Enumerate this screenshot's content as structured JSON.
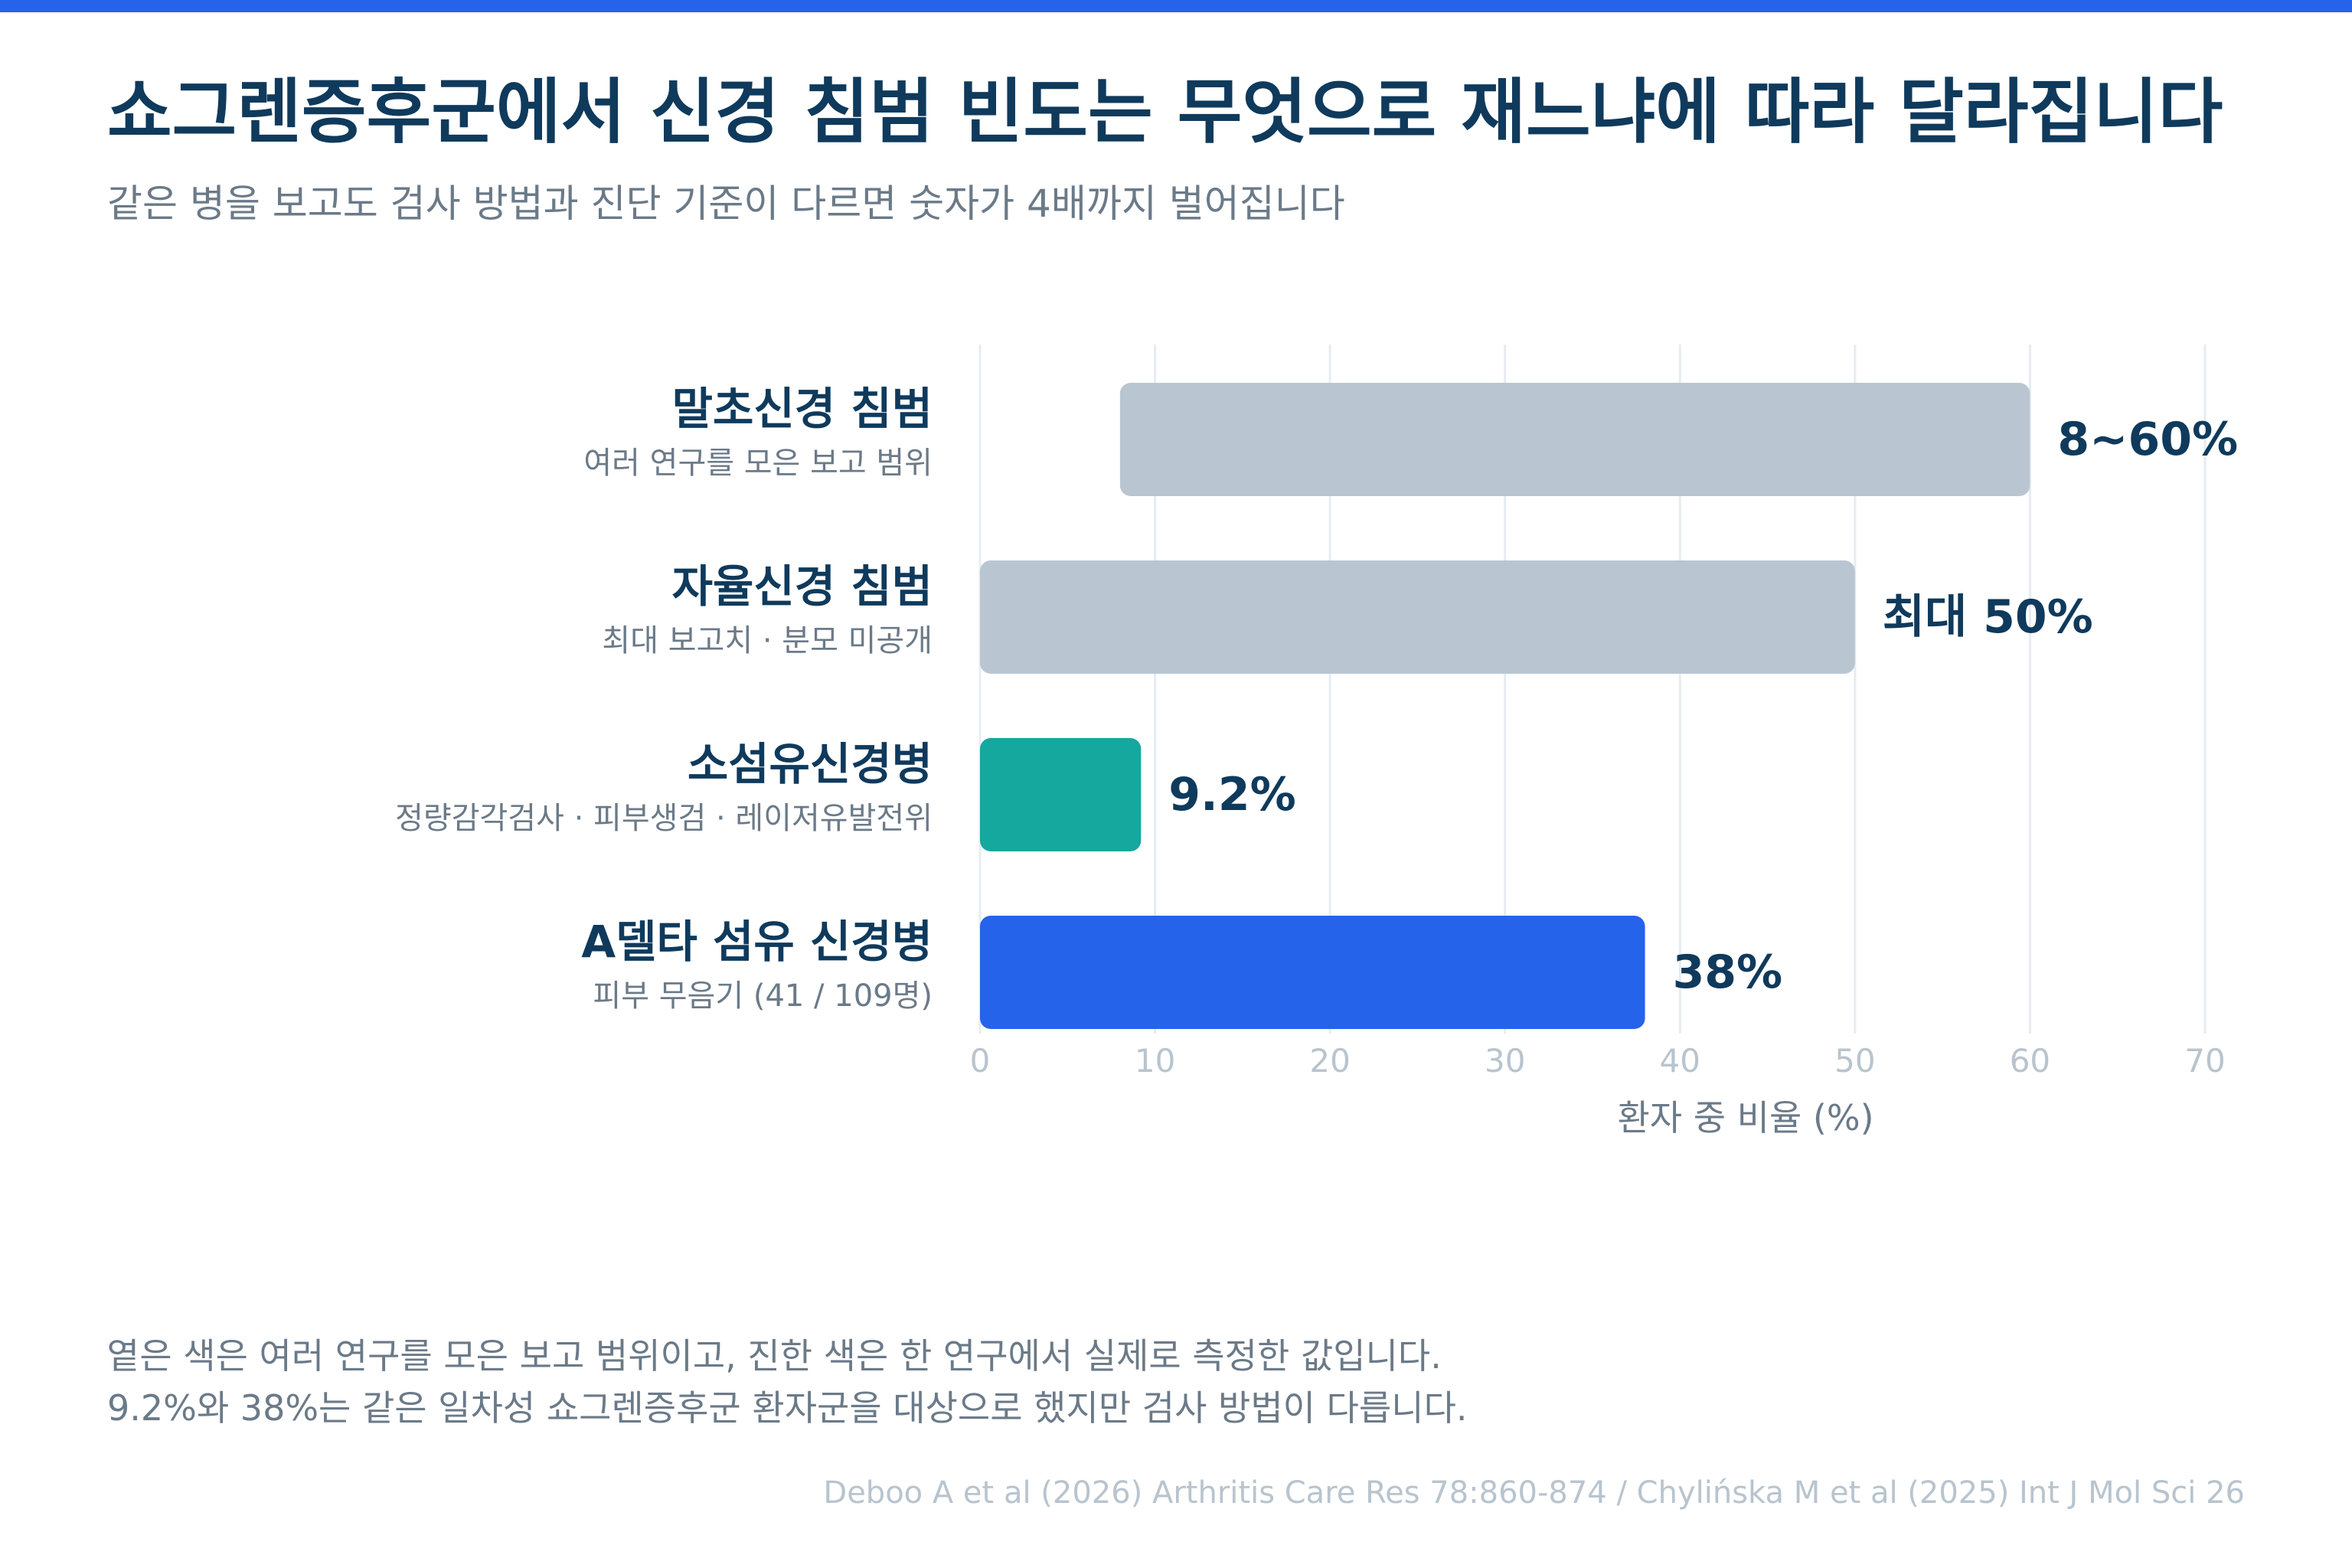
{
  "colors": {
    "accent_bar": "#2563eb",
    "title": "#0f3a5c",
    "subtitle": "#6b7a88",
    "range_bar": "#b9c6d1",
    "teal_bar": "#14a89e",
    "blue_bar": "#2563eb",
    "grid": "#e6ecf1",
    "tick": "#b8c4ce",
    "source": "#b8c4ce"
  },
  "header": {
    "title": "쇼그렌증후군에서 신경 침범 빈도는 무엇으로 재느냐에 따라 달라집니다",
    "subtitle": "같은 병을 보고도 검사 방법과 진단 기준이 다르면 숫자가 4배까지 벌어집니다"
  },
  "chart_data": {
    "type": "bar",
    "orientation": "horizontal",
    "title": "",
    "xlabel": "환자 중 비율 (%)",
    "ylabel": "",
    "xlim": [
      0,
      70
    ],
    "xticks": [
      0,
      10,
      20,
      30,
      40,
      50,
      60,
      70
    ],
    "grid": true,
    "categories": [
      "말초신경 침범",
      "자율신경 침범",
      "소섬유신경병",
      "A델타 섬유 신경병"
    ],
    "sublabels": [
      "여러 연구를 모은 보고 범위",
      "최대 보고치 · 분모 미공개",
      "정량감각검사 · 피부생검 · 레이저유발전위",
      "피부 무음기 (41 / 109명)"
    ],
    "bars": [
      {
        "start": 8,
        "end": 60,
        "label": "8~60%",
        "style": "range"
      },
      {
        "start": 0,
        "end": 50,
        "label": "최대 50%",
        "style": "range"
      },
      {
        "start": 0,
        "end": 9.2,
        "label": "9.2%",
        "style": "teal"
      },
      {
        "start": 0,
        "end": 38,
        "label": "38%",
        "style": "blue"
      }
    ]
  },
  "notes": {
    "line1": "옅은 색은 여러 연구를 모은 보고 범위이고, 진한 색은 한 연구에서 실제로 측정한 값입니다.",
    "line2": "9.2%와 38%는 같은 일차성 쇼그렌증후군 환자군을 대상으로 했지만 검사 방법이 다릅니다."
  },
  "source": "Deboo A et al (2026) Arthritis Care Res 78:860-874 / Chylińska M et al (2025) Int J Mol Sci 26"
}
